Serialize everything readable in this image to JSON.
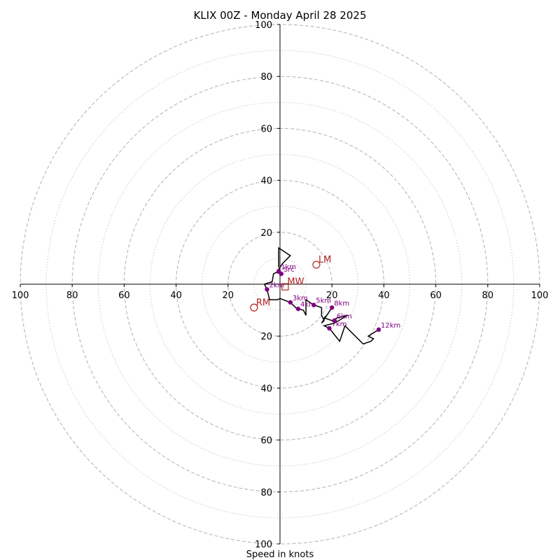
{
  "chart_data": {
    "type": "hodograph",
    "title": "KLIX 00Z - Monday April 28 2025",
    "xlabel": "Speed in knots",
    "units": "knots",
    "axis_range": [
      -100,
      100
    ],
    "tick_labels": [
      "100",
      "80",
      "60",
      "40",
      "20",
      "20",
      "40",
      "60",
      "80",
      "100"
    ],
    "rings_dashed": [
      20,
      40,
      60,
      80,
      100
    ],
    "rings_dotted": [
      10,
      30,
      50,
      70,
      90
    ],
    "grid_color": "#b0b0b0",
    "trace_color": "#000000",
    "marker_color": "#800080",
    "motion_color": "#b22222",
    "profile": [
      {
        "u": -0.5,
        "v": 6.5
      },
      {
        "u": -0.5,
        "v": 8
      },
      {
        "u": -0.5,
        "v": 14
      },
      {
        "u": 4,
        "v": 11
      },
      {
        "u": 1,
        "v": 8
      },
      {
        "u": -1,
        "v": 5
      },
      {
        "u": 0.5,
        "v": 4
      },
      {
        "u": -1.5,
        "v": 4.5
      },
      {
        "u": -2.5,
        "v": 4
      },
      {
        "u": -3,
        "v": 1
      },
      {
        "u": -6,
        "v": 0
      },
      {
        "u": -5,
        "v": -2
      },
      {
        "u": -4,
        "v": -6
      },
      {
        "u": -1,
        "v": -6
      },
      {
        "u": 0,
        "v": -5.5
      },
      {
        "u": 4,
        "v": -7
      },
      {
        "u": 6,
        "v": -9
      },
      {
        "u": 7,
        "v": -9.5
      },
      {
        "u": 9,
        "v": -10
      },
      {
        "u": 10,
        "v": -12
      },
      {
        "u": 10,
        "v": -6
      },
      {
        "u": 13,
        "v": -8
      },
      {
        "u": 16,
        "v": -9
      },
      {
        "u": 16,
        "v": -12
      },
      {
        "u": 17,
        "v": -14
      },
      {
        "u": 16,
        "v": -15
      },
      {
        "u": 20,
        "v": -9
      },
      {
        "u": 18,
        "v": -12
      },
      {
        "u": 17,
        "v": -13
      },
      {
        "u": 20,
        "v": -14
      },
      {
        "u": 22,
        "v": -13
      },
      {
        "u": 26,
        "v": -12
      },
      {
        "u": 21,
        "v": -15
      },
      {
        "u": 17,
        "v": -16
      },
      {
        "u": 19,
        "v": -17
      },
      {
        "u": 23,
        "v": -22
      },
      {
        "u": 25,
        "v": -16
      },
      {
        "u": 27,
        "v": -18
      },
      {
        "u": 32,
        "v": -23
      },
      {
        "u": 35,
        "v": -22
      },
      {
        "u": 36,
        "v": -21
      },
      {
        "u": 34,
        "v": -20
      },
      {
        "u": 38,
        "v": -17.5
      }
    ],
    "height_markers": [
      {
        "label": "1km",
        "u": -0.5,
        "v": 5
      },
      {
        "label": "Src",
        "u": 0.5,
        "v": 4
      },
      {
        "label": "2km",
        "u": -5,
        "v": -2
      },
      {
        "label": "3km",
        "u": 4,
        "v": -7
      },
      {
        "label": "4km",
        "u": 7,
        "v": -9.5
      },
      {
        "label": "5km",
        "u": 13,
        "v": -8
      },
      {
        "label": "8km",
        "u": 20,
        "v": -9
      },
      {
        "label": "6km",
        "u": 21,
        "v": -14
      },
      {
        "label": "7km",
        "u": 19,
        "v": -17
      },
      {
        "label": "12km",
        "u": 38,
        "v": -17.5
      }
    ],
    "storm_motion": [
      {
        "label": "LM",
        "u": 14,
        "v": 7.5,
        "shape": "circle"
      },
      {
        "label": "MW",
        "u": 2,
        "v": -1,
        "shape": "square"
      },
      {
        "label": "RM",
        "u": -10,
        "v": -9,
        "shape": "circle"
      }
    ]
  }
}
